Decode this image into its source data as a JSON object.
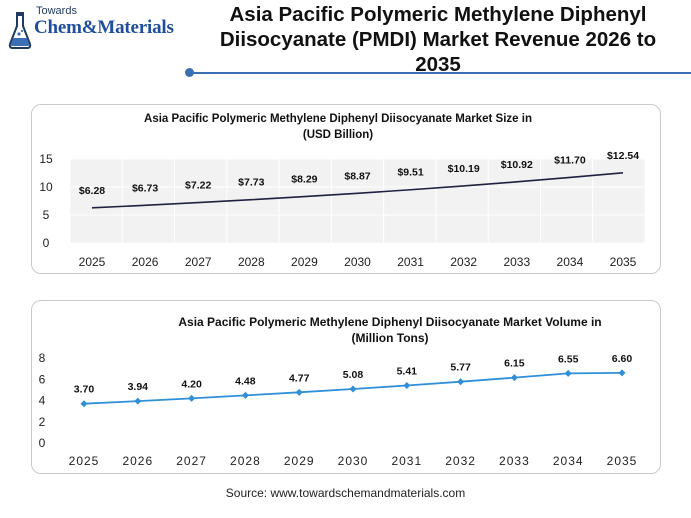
{
  "header": {
    "logo_small": "Towards",
    "logo_big": "Chem&Materials",
    "title": "Asia Pacific Polymeric Methylene Diphenyl Diisocyanate (PMDI) Market Revenue 2026 to 2035",
    "accent_color": "#3b6fb5"
  },
  "chart_data": [
    {
      "type": "line",
      "title": "Asia Pacific Polymeric Methylene Diphenyl Diisocyanate Market Size in (USD Billion)",
      "categories": [
        "2025",
        "2026",
        "2027",
        "2028",
        "2029",
        "2030",
        "2031",
        "2032",
        "2033",
        "2034",
        "2035"
      ],
      "values": [
        6.28,
        6.73,
        7.22,
        7.73,
        8.29,
        8.87,
        9.51,
        10.19,
        10.92,
        11.7,
        12.54
      ],
      "data_labels": [
        "$6.28",
        "$6.73",
        "$7.22",
        "$7.73",
        "$8.29",
        "$8.87",
        "$9.51",
        "$10.19",
        "$10.92",
        "$11.70",
        "$12.54"
      ],
      "yticks": [
        0,
        5,
        10,
        15
      ],
      "ylim": [
        0,
        15
      ],
      "grid": true,
      "markers": false,
      "line_color": "#1f2140"
    },
    {
      "type": "line",
      "title": "Asia Pacific Polymeric Methylene Diphenyl Diisocyanate Market Volume in (Million Tons)",
      "categories": [
        "2025",
        "2026",
        "2027",
        "2028",
        "2029",
        "2030",
        "2031",
        "2032",
        "2033",
        "2034",
        "2035"
      ],
      "values": [
        3.7,
        3.94,
        4.2,
        4.48,
        4.77,
        5.08,
        5.41,
        5.77,
        6.15,
        6.55,
        6.6
      ],
      "data_labels": [
        "3.70",
        "3.94",
        "4.20",
        "4.48",
        "4.77",
        "5.08",
        "5.41",
        "5.77",
        "6.15",
        "6.55",
        "6.60"
      ],
      "yticks": [
        0,
        2,
        4,
        6,
        8
      ],
      "ylim": [
        0,
        8
      ],
      "grid": false,
      "markers": true,
      "line_color": "#2f8fd8"
    }
  ],
  "footer": {
    "source": "Source: www.towardschemandmaterials.com"
  }
}
